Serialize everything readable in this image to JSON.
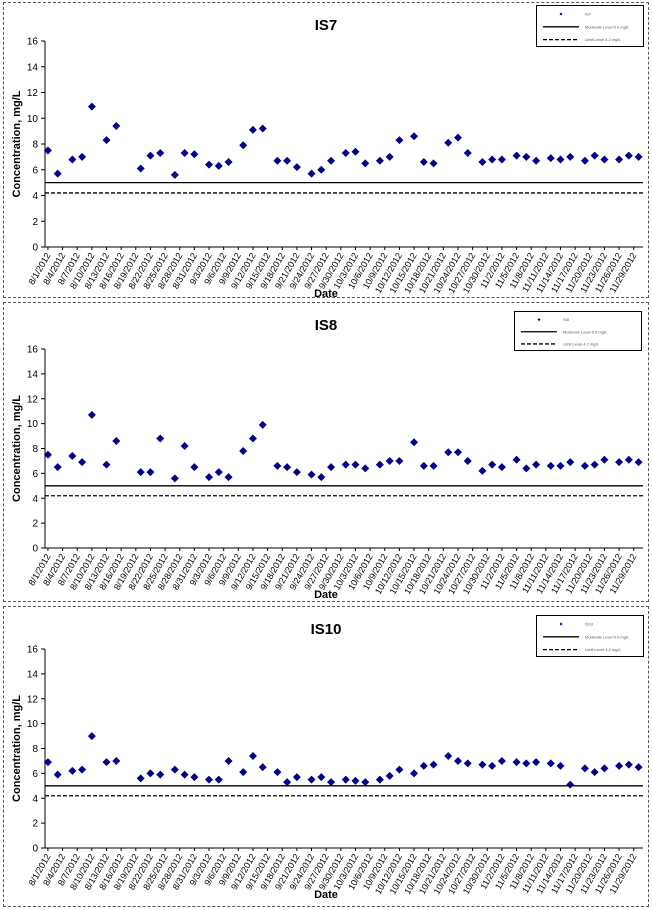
{
  "chart_data": [
    {
      "type": "scatter",
      "title": "IS7",
      "xlabel": "Date",
      "ylabel": "Concentration, mg/L",
      "ylim": [
        0,
        16
      ],
      "yticks": [
        "0",
        "2",
        "4",
        "6",
        "8",
        "10",
        "12",
        "14",
        "16"
      ],
      "grid": false,
      "legend_position": "top-right",
      "x_tick_labels": [
        "8/1/2012",
        "8/4/2012",
        "8/7/2012",
        "8/10/2012",
        "8/13/2012",
        "8/16/2012",
        "8/19/2012",
        "8/22/2012",
        "8/25/2012",
        "8/28/2012",
        "8/31/2012",
        "9/3/2012",
        "9/6/2012",
        "9/9/2012",
        "9/12/2012",
        "9/15/2012",
        "9/18/2012",
        "9/21/2012",
        "9/24/2012",
        "9/27/2012",
        "9/30/2012",
        "10/3/2012",
        "10/6/2012",
        "10/9/2012",
        "10/12/2012",
        "10/15/2012",
        "10/18/2012",
        "10/21/2012",
        "10/24/2012",
        "10/27/2012",
        "10/30/2012",
        "11/2/2012",
        "11/5/2012",
        "11/8/2012",
        "11/11/2012",
        "11/14/2012",
        "11/17/2012",
        "11/20/2012",
        "11/23/2012",
        "11/26/2012",
        "11/29/2012"
      ],
      "series": [
        {
          "name": "IS7",
          "marker": "diamond",
          "color": "#00008B",
          "points": [
            [
              "8/1/2012",
              7.5
            ],
            [
              "8/3/2012",
              5.7
            ],
            [
              "8/6/2012",
              6.8
            ],
            [
              "8/8/2012",
              7.0
            ],
            [
              "8/10/2012",
              10.9
            ],
            [
              "8/13/2012",
              8.3
            ],
            [
              "8/15/2012",
              9.4
            ],
            [
              "8/20/2012",
              6.1
            ],
            [
              "8/22/2012",
              7.1
            ],
            [
              "8/24/2012",
              7.3
            ],
            [
              "8/27/2012",
              5.6
            ],
            [
              "8/29/2012",
              7.3
            ],
            [
              "8/31/2012",
              7.2
            ],
            [
              "9/3/2012",
              6.4
            ],
            [
              "9/5/2012",
              6.3
            ],
            [
              "9/7/2012",
              6.6
            ],
            [
              "9/10/2012",
              7.9
            ],
            [
              "9/12/2012",
              9.1
            ],
            [
              "9/14/2012",
              9.2
            ],
            [
              "9/17/2012",
              6.7
            ],
            [
              "9/19/2012",
              6.7
            ],
            [
              "9/21/2012",
              6.2
            ],
            [
              "9/24/2012",
              5.7
            ],
            [
              "9/26/2012",
              6.0
            ],
            [
              "9/28/2012",
              6.7
            ],
            [
              "10/1/2012",
              7.3
            ],
            [
              "10/3/2012",
              7.4
            ],
            [
              "10/5/2012",
              6.5
            ],
            [
              "10/8/2012",
              6.7
            ],
            [
              "10/10/2012",
              7.0
            ],
            [
              "10/12/2012",
              8.3
            ],
            [
              "10/15/2012",
              8.6
            ],
            [
              "10/17/2012",
              6.6
            ],
            [
              "10/19/2012",
              6.5
            ],
            [
              "10/22/2012",
              8.1
            ],
            [
              "10/24/2012",
              8.5
            ],
            [
              "10/26/2012",
              7.3
            ],
            [
              "10/29/2012",
              6.6
            ],
            [
              "10/31/2012",
              6.8
            ],
            [
              "11/2/2012",
              6.8
            ],
            [
              "11/5/2012",
              7.1
            ],
            [
              "11/7/2012",
              7.0
            ],
            [
              "11/9/2012",
              6.7
            ],
            [
              "11/12/2012",
              6.9
            ],
            [
              "11/14/2012",
              6.8
            ],
            [
              "11/16/2012",
              7.0
            ],
            [
              "11/19/2012",
              6.7
            ],
            [
              "11/21/2012",
              7.1
            ],
            [
              "11/23/2012",
              6.8
            ],
            [
              "11/26/2012",
              6.8
            ],
            [
              "11/28/2012",
              7.1
            ],
            [
              "11/30/2012",
              7.0
            ]
          ]
        },
        {
          "name": "Moderate Level 5.0 mg/L",
          "type": "hline",
          "y": 5.0,
          "style": "solid"
        },
        {
          "name": "Limit Level 4.2 mg/L",
          "type": "hline",
          "y": 4.2,
          "style": "dashed"
        }
      ]
    },
    {
      "type": "scatter",
      "title": "IS8",
      "xlabel": "Date",
      "ylabel": "Concentration, mg/L",
      "ylim": [
        0,
        16
      ],
      "yticks": [
        "0",
        "2",
        "4",
        "6",
        "8",
        "10",
        "12",
        "14",
        "16"
      ],
      "grid": false,
      "legend_position": "top-right",
      "x_tick_labels": [
        "8/1/2012",
        "8/4/2012",
        "8/7/2012",
        "8/10/2012",
        "8/13/2012",
        "8/16/2012",
        "8/19/2012",
        "8/22/2012",
        "8/25/2012",
        "8/28/2012",
        "8/31/2012",
        "9/3/2012",
        "9/6/2012",
        "9/9/2012",
        "9/12/2012",
        "9/15/2012",
        "9/18/2012",
        "9/21/2012",
        "9/24/2012",
        "9/27/2012",
        "9/30/2012",
        "10/3/2012",
        "10/6/2012",
        "10/9/2012",
        "10/12/2012",
        "10/15/2012",
        "10/18/2012",
        "10/21/2012",
        "10/24/2012",
        "10/27/2012",
        "10/30/2012",
        "11/2/2012",
        "11/5/2012",
        "11/8/2012",
        "11/11/2012",
        "11/14/2012",
        "11/17/2012",
        "11/20/2012",
        "11/23/2012",
        "11/26/2012",
        "11/29/2012"
      ],
      "series": [
        {
          "name": "IS8",
          "marker": "diamond",
          "color": "#00008B",
          "points": [
            [
              "8/1/2012",
              7.5
            ],
            [
              "8/3/2012",
              6.5
            ],
            [
              "8/6/2012",
              7.4
            ],
            [
              "8/8/2012",
              6.9
            ],
            [
              "8/10/2012",
              10.7
            ],
            [
              "8/13/2012",
              6.7
            ],
            [
              "8/15/2012",
              8.6
            ],
            [
              "8/20/2012",
              6.1
            ],
            [
              "8/22/2012",
              6.1
            ],
            [
              "8/24/2012",
              8.8
            ],
            [
              "8/27/2012",
              5.6
            ],
            [
              "8/29/2012",
              8.2
            ],
            [
              "8/31/2012",
              6.5
            ],
            [
              "9/3/2012",
              5.7
            ],
            [
              "9/5/2012",
              6.1
            ],
            [
              "9/7/2012",
              5.7
            ],
            [
              "9/10/2012",
              7.8
            ],
            [
              "9/12/2012",
              8.8
            ],
            [
              "9/14/2012",
              9.9
            ],
            [
              "9/17/2012",
              6.6
            ],
            [
              "9/19/2012",
              6.5
            ],
            [
              "9/21/2012",
              6.1
            ],
            [
              "9/24/2012",
              5.9
            ],
            [
              "9/26/2012",
              5.7
            ],
            [
              "9/28/2012",
              6.5
            ],
            [
              "10/1/2012",
              6.7
            ],
            [
              "10/3/2012",
              6.7
            ],
            [
              "10/5/2012",
              6.4
            ],
            [
              "10/8/2012",
              6.7
            ],
            [
              "10/10/2012",
              7.0
            ],
            [
              "10/12/2012",
              7.0
            ],
            [
              "10/15/2012",
              8.5
            ],
            [
              "10/17/2012",
              6.6
            ],
            [
              "10/19/2012",
              6.6
            ],
            [
              "10/22/2012",
              7.7
            ],
            [
              "10/24/2012",
              7.7
            ],
            [
              "10/26/2012",
              7.0
            ],
            [
              "10/29/2012",
              6.2
            ],
            [
              "10/31/2012",
              6.7
            ],
            [
              "11/2/2012",
              6.5
            ],
            [
              "11/5/2012",
              7.1
            ],
            [
              "11/7/2012",
              6.4
            ],
            [
              "11/9/2012",
              6.7
            ],
            [
              "11/12/2012",
              6.6
            ],
            [
              "11/14/2012",
              6.6
            ],
            [
              "11/16/2012",
              6.9
            ],
            [
              "11/19/2012",
              6.6
            ],
            [
              "11/21/2012",
              6.7
            ],
            [
              "11/23/2012",
              7.1
            ],
            [
              "11/26/2012",
              6.9
            ],
            [
              "11/28/2012",
              7.1
            ],
            [
              "11/30/2012",
              6.9
            ]
          ]
        },
        {
          "name": "Moderate Level 5.0 mg/L",
          "type": "hline",
          "y": 5.0,
          "style": "solid"
        },
        {
          "name": "Limit Level 4.2 mg/L",
          "type": "hline",
          "y": 4.2,
          "style": "dashed"
        }
      ]
    },
    {
      "type": "scatter",
      "title": "IS10",
      "xlabel": "Date",
      "ylabel": "Concentration, mg/L",
      "ylim": [
        0,
        16
      ],
      "yticks": [
        "0",
        "2",
        "4",
        "6",
        "8",
        "10",
        "12",
        "14",
        "16"
      ],
      "grid": false,
      "legend_position": "top-right",
      "x_tick_labels": [
        "8/1/2012",
        "8/4/2012",
        "8/7/2012",
        "8/10/2012",
        "8/13/2012",
        "8/16/2012",
        "8/19/2012",
        "8/22/2012",
        "8/25/2012",
        "8/28/2012",
        "8/31/2012",
        "9/3/2012",
        "9/6/2012",
        "9/9/2012",
        "9/12/2012",
        "9/15/2012",
        "9/18/2012",
        "9/21/2012",
        "9/24/2012",
        "9/27/2012",
        "9/30/2012",
        "10/3/2012",
        "10/6/2012",
        "10/9/2012",
        "10/12/2012",
        "10/15/2012",
        "10/18/2012",
        "10/21/2012",
        "10/24/2012",
        "10/27/2012",
        "10/30/2012",
        "11/2/2012",
        "11/5/2012",
        "11/8/2012",
        "11/11/2012",
        "11/14/2012",
        "11/17/2012",
        "11/20/2012",
        "11/23/2012",
        "11/26/2012",
        "11/29/2012"
      ],
      "series": [
        {
          "name": "IS10",
          "marker": "diamond",
          "color": "#00008B",
          "points": [
            [
              "8/1/2012",
              6.9
            ],
            [
              "8/3/2012",
              5.9
            ],
            [
              "8/6/2012",
              6.2
            ],
            [
              "8/8/2012",
              6.3
            ],
            [
              "8/10/2012",
              9.0
            ],
            [
              "8/13/2012",
              6.9
            ],
            [
              "8/15/2012",
              7.0
            ],
            [
              "8/20/2012",
              5.6
            ],
            [
              "8/22/2012",
              6.0
            ],
            [
              "8/24/2012",
              5.9
            ],
            [
              "8/27/2012",
              6.3
            ],
            [
              "8/29/2012",
              5.9
            ],
            [
              "8/31/2012",
              5.7
            ],
            [
              "9/3/2012",
              5.5
            ],
            [
              "9/5/2012",
              5.5
            ],
            [
              "9/7/2012",
              7.0
            ],
            [
              "9/10/2012",
              6.1
            ],
            [
              "9/12/2012",
              7.4
            ],
            [
              "9/14/2012",
              6.5
            ],
            [
              "9/17/2012",
              6.1
            ],
            [
              "9/19/2012",
              5.3
            ],
            [
              "9/21/2012",
              5.7
            ],
            [
              "9/24/2012",
              5.5
            ],
            [
              "9/26/2012",
              5.7
            ],
            [
              "9/28/2012",
              5.3
            ],
            [
              "10/1/2012",
              5.5
            ],
            [
              "10/3/2012",
              5.4
            ],
            [
              "10/5/2012",
              5.3
            ],
            [
              "10/8/2012",
              5.5
            ],
            [
              "10/10/2012",
              5.8
            ],
            [
              "10/12/2012",
              6.3
            ],
            [
              "10/15/2012",
              6.0
            ],
            [
              "10/17/2012",
              6.6
            ],
            [
              "10/19/2012",
              6.7
            ],
            [
              "10/22/2012",
              7.4
            ],
            [
              "10/24/2012",
              7.0
            ],
            [
              "10/26/2012",
              6.8
            ],
            [
              "10/29/2012",
              6.7
            ],
            [
              "10/31/2012",
              6.6
            ],
            [
              "11/2/2012",
              7.0
            ],
            [
              "11/5/2012",
              6.9
            ],
            [
              "11/7/2012",
              6.8
            ],
            [
              "11/9/2012",
              6.9
            ],
            [
              "11/12/2012",
              6.8
            ],
            [
              "11/14/2012",
              6.6
            ],
            [
              "11/16/2012",
              5.1
            ],
            [
              "11/19/2012",
              6.4
            ],
            [
              "11/21/2012",
              6.1
            ],
            [
              "11/23/2012",
              6.4
            ],
            [
              "11/26/2012",
              6.6
            ],
            [
              "11/28/2012",
              6.7
            ],
            [
              "11/30/2012",
              6.5
            ]
          ]
        },
        {
          "name": "Moderate Level 5.0 mg/L",
          "type": "hline",
          "y": 5.0,
          "style": "solid"
        },
        {
          "name": "Limit Level 4.2 mg/L",
          "type": "hline",
          "y": 4.2,
          "style": "dashed"
        }
      ]
    }
  ]
}
